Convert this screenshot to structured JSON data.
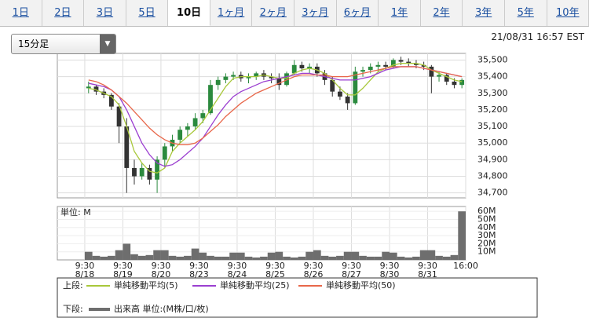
{
  "tabs": [
    "1日",
    "2日",
    "3日",
    "5日",
    "10日",
    "1ヶ月",
    "2ヶ月",
    "3ヶ月",
    "6ヶ月",
    "1年",
    "2年",
    "3年",
    "5年",
    "10年"
  ],
  "active_tab": 4,
  "dropdown": "15分足",
  "timestamp": "21/08/31 16:57 EST",
  "legend": {
    "upper_label": "上段:",
    "lower_label": "下段:"
  },
  "chart_data": [
    {
      "type": "candlestick",
      "x": [
        0.5,
        1.5,
        2.5,
        3.5,
        4.5,
        5.5,
        6.5,
        7.5,
        8.5,
        9.5,
        10.5,
        11.5,
        12.5,
        13.5,
        14.5,
        15.5,
        16.5,
        17.5,
        18.5,
        19.5,
        20.5,
        21.5,
        22.5,
        23.5,
        24.5,
        25.5,
        26.5,
        27.5,
        28.5,
        29.5,
        30.5,
        31.5,
        32.5,
        33.5,
        34.5,
        35.5,
        36.5,
        37.5,
        38.5,
        39.5,
        40.5,
        41.5,
        42.5,
        43.5,
        44.5,
        45.5,
        46.5,
        47.5,
        48.5,
        49.5
      ],
      "open": [
        35330,
        35340,
        35310,
        35290,
        35220,
        35100,
        34850,
        34800,
        34850,
        34780,
        34900,
        34980,
        35020,
        35080,
        35100,
        35150,
        35180,
        35350,
        35380,
        35400,
        35410,
        35390,
        35400,
        35420,
        35400,
        35390,
        35350,
        35420,
        35470,
        35450,
        35460,
        35420,
        35380,
        35310,
        35280,
        35240,
        35430,
        35440,
        35460,
        35470,
        35460,
        35500,
        35490,
        35480,
        35470,
        35460,
        35400,
        35410,
        35370,
        35350
      ],
      "high": [
        35370,
        35350,
        35330,
        35300,
        35240,
        35150,
        34900,
        34880,
        34870,
        34920,
        35000,
        35050,
        35100,
        35120,
        35180,
        35200,
        35380,
        35400,
        35420,
        35430,
        35430,
        35420,
        35430,
        35440,
        35420,
        35420,
        35430,
        35500,
        35490,
        35480,
        35480,
        35440,
        35400,
        35340,
        35300,
        35460,
        35460,
        35480,
        35490,
        35490,
        35510,
        35520,
        35510,
        35500,
        35490,
        35470,
        35430,
        35420,
        35390,
        35390
      ],
      "low": [
        35300,
        35290,
        35270,
        35200,
        35000,
        34700,
        34750,
        34780,
        34750,
        34700,
        34850,
        34950,
        35000,
        35040,
        35080,
        35120,
        35170,
        35320,
        35360,
        35380,
        35370,
        35360,
        35380,
        35380,
        35360,
        35320,
        35340,
        35410,
        35430,
        35420,
        35400,
        35350,
        35280,
        35260,
        35200,
        35230,
        35400,
        35420,
        35430,
        35440,
        35450,
        35470,
        35460,
        35450,
        35440,
        35300,
        35370,
        35350,
        35330,
        35330
      ],
      "close": [
        35340,
        35310,
        35290,
        35220,
        35100,
        34850,
        34800,
        34850,
        34780,
        34900,
        34980,
        35020,
        35080,
        35100,
        35150,
        35180,
        35350,
        35380,
        35400,
        35410,
        35390,
        35400,
        35420,
        35400,
        35390,
        35350,
        35420,
        35470,
        35450,
        35460,
        35420,
        35380,
        35310,
        35280,
        35240,
        35430,
        35440,
        35460,
        35470,
        35460,
        35500,
        35490,
        35480,
        35470,
        35460,
        35400,
        35410,
        35370,
        35350,
        35380
      ],
      "up_color": "#2b8a3e",
      "down_color": "#333333",
      "lines": [
        {
          "name": "単純移動平均(5)",
          "color": "#a8c83a",
          "values": [
            35330,
            35320,
            35300,
            35280,
            35230,
            35100,
            34950,
            34880,
            34830,
            34820,
            34850,
            34950,
            35000,
            35040,
            35080,
            35130,
            35200,
            35270,
            35340,
            35390,
            35400,
            35400,
            35400,
            35410,
            35400,
            35390,
            35390,
            35420,
            35440,
            35450,
            35440,
            35420,
            35380,
            35330,
            35290,
            35290,
            35330,
            35380,
            35430,
            35450,
            35470,
            35480,
            35480,
            35480,
            35470,
            35440,
            35420,
            35400,
            35380,
            35370
          ]
        },
        {
          "name": "単純移動平均(25)",
          "color": "#9b3fd0",
          "values": [
            35360,
            35350,
            35340,
            35320,
            35280,
            35200,
            35100,
            35000,
            34930,
            34880,
            34860,
            34870,
            34900,
            34940,
            34980,
            35030,
            35100,
            35170,
            35230,
            35280,
            35310,
            35330,
            35350,
            35370,
            35380,
            35390,
            35400,
            35410,
            35420,
            35420,
            35410,
            35400,
            35390,
            35380,
            35380,
            35380,
            35390,
            35400,
            35420,
            35440,
            35450,
            35460,
            35460,
            35460,
            35450,
            35440,
            35430,
            35420,
            35410,
            35400
          ]
        },
        {
          "name": "単純移動平均(50)",
          "color": "#e8674a",
          "values": [
            35380,
            35370,
            35350,
            35320,
            35280,
            35240,
            35190,
            35140,
            35090,
            35050,
            35020,
            35000,
            34990,
            34990,
            35000,
            35030,
            35070,
            35110,
            35160,
            35200,
            35240,
            35270,
            35300,
            35320,
            35340,
            35360,
            35380,
            35400,
            35410,
            35410,
            35410,
            35410,
            35400,
            35400,
            35400,
            35410,
            35420,
            35430,
            35440,
            35450,
            35460,
            35460,
            35460,
            35460,
            35450,
            35440,
            35430,
            35420,
            35410,
            35400
          ]
        }
      ],
      "xlim": [
        -3.6,
        50
      ],
      "xticks": [
        {
          "value": 0,
          "label": "9:30"
        },
        {
          "value": 5,
          "label": "9:30"
        },
        {
          "value": 10,
          "label": "9:30"
        },
        {
          "value": 15,
          "label": "9:30"
        },
        {
          "value": 20,
          "label": "9:30"
        },
        {
          "value": 25,
          "label": "9:30"
        },
        {
          "value": 30,
          "label": "9:30"
        },
        {
          "value": 35,
          "label": "9:30"
        },
        {
          "value": 40,
          "label": "9:30"
        },
        {
          "value": 45,
          "label": "9:30"
        },
        {
          "value": 50,
          "label": "16:00"
        }
      ],
      "xtick_dates": [
        "8/18",
        "8/19",
        "8/20",
        "8/23",
        "8/24",
        "8/25",
        "8/26",
        "8/27",
        "8/30",
        "8/31",
        null
      ],
      "ylim": [
        34670,
        35540
      ],
      "yticks": [
        {
          "value": 34700,
          "label": "34,700"
        },
        {
          "value": 34800,
          "label": "34,800"
        },
        {
          "value": 34900,
          "label": "34,900"
        },
        {
          "value": 35000,
          "label": "35,000"
        },
        {
          "value": 35100,
          "label": "35,100"
        },
        {
          "value": 35200,
          "label": "35,200"
        },
        {
          "value": 35300,
          "label": "35,300"
        },
        {
          "value": 35400,
          "label": "35,400"
        },
        {
          "value": 35500,
          "label": "35,500"
        }
      ],
      "grid": true
    },
    {
      "type": "bar",
      "unit_label": "単位: M",
      "series": [
        {
          "name": "出来高 単位:(M株/口/枚)",
          "color": "#6e6e6e",
          "values": [
            10,
            5,
            4,
            5,
            12,
            20,
            7,
            5,
            6,
            12,
            12,
            5,
            4,
            5,
            14,
            9,
            5,
            4,
            4,
            9,
            9,
            4,
            3,
            4,
            9,
            10,
            4,
            3,
            4,
            10,
            12,
            5,
            4,
            5,
            10,
            10,
            5,
            4,
            4,
            10,
            9,
            4,
            3,
            4,
            12,
            12,
            5,
            4,
            6,
            60
          ]
        }
      ],
      "ylim": [
        0,
        66
      ],
      "yticks": [
        {
          "value": 10,
          "label": "10M"
        },
        {
          "value": 20,
          "label": "20M"
        },
        {
          "value": 30,
          "label": "30M"
        },
        {
          "value": 40,
          "label": "40M"
        },
        {
          "value": 50,
          "label": "50M"
        },
        {
          "value": 60,
          "label": "60M"
        }
      ],
      "grid": true
    }
  ]
}
